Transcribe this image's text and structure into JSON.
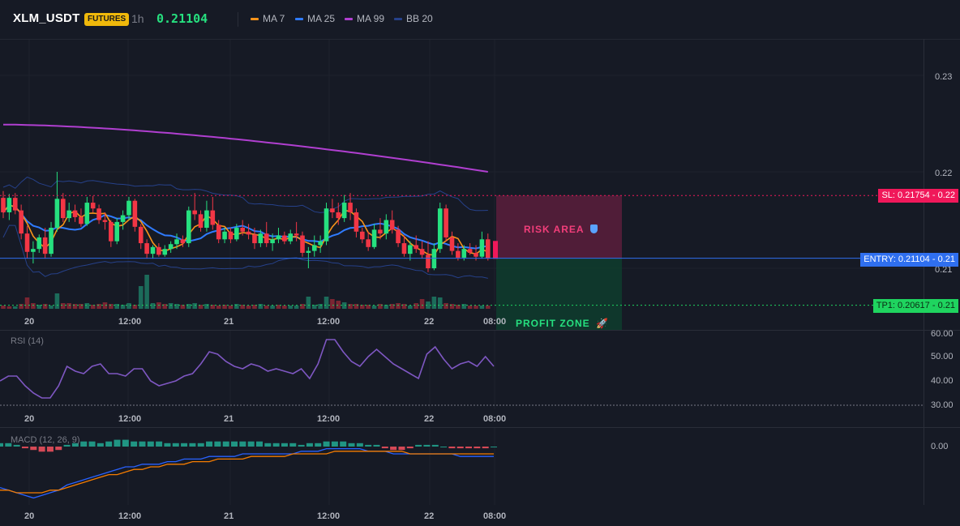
{
  "header": {
    "symbol": "XLM_USDT",
    "badge": "FUTURES",
    "interval": "1h",
    "price": "0.21104",
    "legend": [
      {
        "label": "MA 7",
        "color": "#f7931a"
      },
      {
        "label": "MA 25",
        "color": "#2f7bff"
      },
      {
        "label": "MA 99",
        "color": "#b03fd0"
      },
      {
        "label": "BB 20",
        "color": "#26418a"
      }
    ]
  },
  "price_axis": [
    "0.23",
    "0.22",
    "0.21"
  ],
  "time_axis": [
    "20",
    "12:00",
    "21",
    "12:00",
    "22",
    "08:00"
  ],
  "levels": {
    "sl_label": "SL: 0.21754",
    "sl_value": "0.22",
    "entry_label": "ENTRY: 0.21104",
    "entry_value": "0.21",
    "tp_label": "TP1: 0.20617",
    "tp_value": "0.21"
  },
  "zones": {
    "risk_label": "RISK AREA",
    "profit_label": "PROFIT ZONE"
  },
  "rsi": {
    "title": "RSI (14)",
    "axis": [
      "60.00",
      "50.00",
      "40.00",
      "30.00"
    ]
  },
  "macd": {
    "title": "MACD (12, 26, 9)",
    "axis": [
      "0.00"
    ]
  },
  "colors": {
    "up": "#26e07f",
    "down": "#f23645",
    "vol_up": "#1c6b5a",
    "vol_down": "#7a2532",
    "sl": "#f0185a",
    "entry": "#2f6fef",
    "tp": "#1fd45f",
    "rsi": "#7e57c2",
    "macd": "#2962ff",
    "signal": "#f57c00"
  },
  "chart_data": [
    {
      "type": "candlestick",
      "title": "XLM_USDT",
      "interval": "1h",
      "ylim": [
        0.2055,
        0.2345
      ],
      "yticks": [
        0.21,
        0.22,
        0.23
      ],
      "levels": {
        "sl": 0.21754,
        "entry": 0.21104,
        "tp1": 0.20617
      },
      "ohlc": [
        [
          0.2173,
          0.218,
          0.2152,
          0.2158
        ],
        [
          0.2158,
          0.2177,
          0.215,
          0.2173
        ],
        [
          0.2173,
          0.2178,
          0.2156,
          0.216
        ],
        [
          0.216,
          0.2166,
          0.213,
          0.2136
        ],
        [
          0.2136,
          0.2144,
          0.211,
          0.2117
        ],
        [
          0.2117,
          0.2128,
          0.2105,
          0.212
        ],
        [
          0.212,
          0.2135,
          0.2116,
          0.2132
        ],
        [
          0.2132,
          0.2142,
          0.211,
          0.2115
        ],
        [
          0.2115,
          0.2148,
          0.2112,
          0.2142
        ],
        [
          0.2142,
          0.22,
          0.2138,
          0.2172
        ],
        [
          0.2172,
          0.2178,
          0.2148,
          0.2152
        ],
        [
          0.2152,
          0.2168,
          0.2148,
          0.216
        ],
        [
          0.216,
          0.2166,
          0.2148,
          0.2153
        ],
        [
          0.2153,
          0.2162,
          0.2143,
          0.2146
        ],
        [
          0.2146,
          0.2174,
          0.2144,
          0.2168
        ],
        [
          0.2168,
          0.2175,
          0.2158,
          0.2162
        ],
        [
          0.2162,
          0.2166,
          0.2146,
          0.215
        ],
        [
          0.215,
          0.2158,
          0.214,
          0.2148
        ],
        [
          0.2148,
          0.215,
          0.2122,
          0.2128
        ],
        [
          0.2128,
          0.2152,
          0.2125,
          0.2148
        ],
        [
          0.2148,
          0.216,
          0.214,
          0.2155
        ],
        [
          0.2155,
          0.2174,
          0.215,
          0.217
        ],
        [
          0.217,
          0.2172,
          0.2138,
          0.2143
        ],
        [
          0.2143,
          0.2146,
          0.212,
          0.2126
        ],
        [
          0.2126,
          0.213,
          0.211,
          0.2115
        ],
        [
          0.2115,
          0.2124,
          0.211,
          0.2122
        ],
        [
          0.2122,
          0.2126,
          0.2112,
          0.2114
        ],
        [
          0.2114,
          0.2124,
          0.2112,
          0.212
        ],
        [
          0.212,
          0.2128,
          0.2116,
          0.2125
        ],
        [
          0.2125,
          0.2136,
          0.212,
          0.213
        ],
        [
          0.213,
          0.2134,
          0.2122,
          0.2126
        ],
        [
          0.2126,
          0.2164,
          0.2122,
          0.216
        ],
        [
          0.216,
          0.2178,
          0.215,
          0.2156
        ],
        [
          0.2156,
          0.216,
          0.2138,
          0.2142
        ],
        [
          0.2142,
          0.217,
          0.2138,
          0.216
        ],
        [
          0.216,
          0.2174,
          0.214,
          0.2145
        ],
        [
          0.2145,
          0.215,
          0.2126,
          0.213
        ],
        [
          0.213,
          0.2142,
          0.2126,
          0.2138
        ],
        [
          0.2138,
          0.2142,
          0.2126,
          0.213
        ],
        [
          0.213,
          0.2146,
          0.2128,
          0.2142
        ],
        [
          0.2142,
          0.215,
          0.2134,
          0.2138
        ],
        [
          0.2138,
          0.2146,
          0.213,
          0.2135
        ],
        [
          0.2135,
          0.2142,
          0.212,
          0.2126
        ],
        [
          0.2126,
          0.214,
          0.2122,
          0.2136
        ],
        [
          0.2136,
          0.2148,
          0.2122,
          0.2126
        ],
        [
          0.2126,
          0.2136,
          0.2118,
          0.213
        ],
        [
          0.213,
          0.2142,
          0.2126,
          0.2134
        ],
        [
          0.2134,
          0.2138,
          0.2125,
          0.2128
        ],
        [
          0.2128,
          0.214,
          0.2125,
          0.2136
        ],
        [
          0.2136,
          0.2148,
          0.2128,
          0.2134
        ],
        [
          0.2134,
          0.2138,
          0.2112,
          0.2116
        ],
        [
          0.2116,
          0.2122,
          0.21,
          0.2118
        ],
        [
          0.2118,
          0.2134,
          0.2112,
          0.2124
        ],
        [
          0.2124,
          0.2134,
          0.2116,
          0.2128
        ],
        [
          0.2128,
          0.2168,
          0.2124,
          0.2162
        ],
        [
          0.2162,
          0.2172,
          0.2152,
          0.2158
        ],
        [
          0.2158,
          0.2168,
          0.2145,
          0.2152
        ],
        [
          0.2152,
          0.2176,
          0.2148,
          0.2168
        ],
        [
          0.2168,
          0.2178,
          0.215,
          0.2158
        ],
        [
          0.2158,
          0.2162,
          0.2132,
          0.2138
        ],
        [
          0.2138,
          0.2142,
          0.2126,
          0.213
        ],
        [
          0.213,
          0.2138,
          0.2118,
          0.2122
        ],
        [
          0.2122,
          0.2146,
          0.212,
          0.214
        ],
        [
          0.214,
          0.2152,
          0.213,
          0.2136
        ],
        [
          0.2136,
          0.2156,
          0.213,
          0.215
        ],
        [
          0.215,
          0.216,
          0.2136,
          0.214
        ],
        [
          0.214,
          0.2144,
          0.2122,
          0.2126
        ],
        [
          0.2126,
          0.2134,
          0.2112,
          0.2115
        ],
        [
          0.2115,
          0.2128,
          0.2108,
          0.2124
        ],
        [
          0.2124,
          0.2134,
          0.2116,
          0.212
        ],
        [
          0.212,
          0.2128,
          0.211,
          0.2114
        ],
        [
          0.2114,
          0.2128,
          0.2096,
          0.21
        ],
        [
          0.21,
          0.2126,
          0.2098,
          0.212
        ],
        [
          0.212,
          0.2168,
          0.2116,
          0.2162
        ],
        [
          0.2162,
          0.2166,
          0.2128,
          0.2132
        ],
        [
          0.2132,
          0.2138,
          0.2114,
          0.2118
        ],
        [
          0.2118,
          0.2126,
          0.2108,
          0.2111
        ],
        [
          0.2111,
          0.2124,
          0.2108,
          0.212
        ],
        [
          0.212,
          0.2126,
          0.2114,
          0.2116
        ],
        [
          0.2116,
          0.2124,
          0.2108,
          0.2112
        ],
        [
          0.2112,
          0.2138,
          0.211,
          0.213
        ],
        [
          0.213,
          0.2136,
          0.2108,
          0.211
        ]
      ],
      "volume": [
        [
          4,
          0
        ],
        [
          3,
          0
        ],
        [
          3,
          1
        ],
        [
          6,
          0
        ],
        [
          14,
          0
        ],
        [
          7,
          0
        ],
        [
          5,
          1
        ],
        [
          6,
          0
        ],
        [
          4,
          1
        ],
        [
          19,
          1
        ],
        [
          7,
          0
        ],
        [
          7,
          0
        ],
        [
          6,
          0
        ],
        [
          6,
          0
        ],
        [
          7,
          1
        ],
        [
          5,
          0
        ],
        [
          6,
          0
        ],
        [
          8,
          0
        ],
        [
          6,
          0
        ],
        [
          6,
          1
        ],
        [
          5,
          1
        ],
        [
          7,
          1
        ],
        [
          5,
          0
        ],
        [
          28,
          1
        ],
        [
          42,
          1
        ],
        [
          7,
          1
        ],
        [
          8,
          0
        ],
        [
          6,
          0
        ],
        [
          7,
          1
        ],
        [
          6,
          1
        ],
        [
          5,
          0
        ],
        [
          6,
          1
        ],
        [
          7,
          1
        ],
        [
          5,
          0
        ],
        [
          6,
          1
        ],
        [
          5,
          0
        ],
        [
          4,
          0
        ],
        [
          5,
          0
        ],
        [
          4,
          0
        ],
        [
          6,
          1
        ],
        [
          5,
          0
        ],
        [
          4,
          0
        ],
        [
          5,
          0
        ],
        [
          6,
          1
        ],
        [
          4,
          0
        ],
        [
          4,
          1
        ],
        [
          5,
          0
        ],
        [
          4,
          0
        ],
        [
          4,
          1
        ],
        [
          4,
          1
        ],
        [
          6,
          0
        ],
        [
          15,
          1
        ],
        [
          5,
          1
        ],
        [
          6,
          1
        ],
        [
          15,
          1
        ],
        [
          12,
          0
        ],
        [
          10,
          0
        ],
        [
          8,
          1
        ],
        [
          6,
          0
        ],
        [
          6,
          0
        ],
        [
          5,
          0
        ],
        [
          5,
          0
        ],
        [
          4,
          1
        ],
        [
          6,
          0
        ],
        [
          5,
          1
        ],
        [
          6,
          0
        ],
        [
          7,
          0
        ],
        [
          6,
          0
        ],
        [
          4,
          1
        ],
        [
          7,
          0
        ],
        [
          12,
          0
        ],
        [
          9,
          1
        ],
        [
          15,
          1
        ],
        [
          14,
          1
        ],
        [
          7,
          0
        ],
        [
          6,
          0
        ],
        [
          5,
          0
        ],
        [
          6,
          1
        ],
        [
          4,
          0
        ],
        [
          4,
          0
        ],
        [
          4,
          1
        ],
        [
          4,
          0
        ]
      ]
    },
    {
      "type": "line",
      "title": "RSI (14)",
      "ylim": [
        28,
        62
      ],
      "yticks": [
        30,
        40,
        50,
        60
      ],
      "values": [
        40,
        42,
        42,
        38,
        35,
        33,
        33,
        38,
        46,
        44,
        43,
        46,
        47,
        43,
        43,
        42,
        45,
        45,
        40,
        38,
        39,
        40,
        42,
        43,
        47,
        52,
        51,
        48,
        46,
        45,
        47,
        46,
        44,
        45,
        44,
        43,
        45,
        41,
        47,
        57,
        57,
        52,
        48,
        46,
        50,
        53,
        50,
        47,
        45,
        43,
        41,
        51,
        54,
        49,
        45,
        47,
        48,
        46,
        50,
        46
      ]
    },
    {
      "type": "bar",
      "title": "MACD (12, 26, 9)",
      "yticks": [
        0
      ],
      "histogram": [
        2,
        2,
        1,
        -1,
        -2,
        -3,
        -3,
        -2,
        1,
        2,
        3,
        3,
        2,
        3,
        4,
        4,
        3,
        3,
        3,
        3,
        2,
        2,
        2,
        2,
        2,
        3,
        3,
        3,
        3,
        3,
        3,
        3,
        2,
        2,
        2,
        2,
        1,
        2,
        2,
        3,
        3,
        3,
        2,
        2,
        1,
        1,
        -1,
        -2,
        -2,
        -1,
        1,
        1,
        1,
        0,
        -1,
        -1,
        -1,
        -1,
        -1,
        0
      ],
      "macd": [
        -8,
        -9,
        -10,
        -11,
        -12,
        -11,
        -10,
        -9,
        -7,
        -6,
        -5,
        -4,
        -3,
        -2,
        -1,
        0,
        0,
        1,
        1,
        1,
        2,
        2,
        3,
        3,
        3,
        4,
        4,
        4,
        4,
        5,
        5,
        5,
        5,
        5,
        5,
        5,
        6,
        6,
        6,
        7,
        7,
        7,
        7,
        7,
        6,
        6,
        6,
        5,
        5,
        5,
        5,
        5,
        5,
        5,
        5,
        4,
        4,
        4,
        4,
        4
      ],
      "signal": [
        -9,
        -9,
        -10,
        -10,
        -10,
        -10,
        -9,
        -9,
        -8,
        -7,
        -6,
        -5,
        -4,
        -3,
        -3,
        -2,
        -1,
        -1,
        0,
        0,
        1,
        1,
        1,
        2,
        2,
        2,
        3,
        3,
        3,
        3,
        4,
        4,
        4,
        4,
        4,
        5,
        5,
        5,
        5,
        5,
        6,
        6,
        6,
        6,
        6,
        6,
        6,
        6,
        6,
        5,
        5,
        5,
        5,
        5,
        5,
        5,
        5,
        5,
        5,
        5
      ]
    }
  ]
}
